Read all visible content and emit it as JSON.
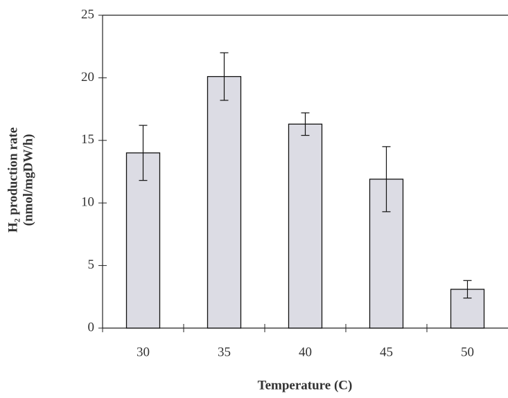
{
  "chart_data": {
    "type": "bar",
    "x_label": "Temperature (C)",
    "y_label": [
      "H₂ production rate",
      "(nmol/mgDW/h)"
    ],
    "categories": [
      "30",
      "35",
      "40",
      "45",
      "50"
    ],
    "values": [
      14.0,
      20.1,
      16.3,
      11.9,
      3.1
    ],
    "errors": [
      2.2,
      1.9,
      0.9,
      2.6,
      0.7
    ],
    "color": "#dcdce4",
    "ylim": [
      0,
      25
    ],
    "yticks": [
      0,
      5,
      10,
      15,
      20,
      25
    ],
    "grid": false
  }
}
